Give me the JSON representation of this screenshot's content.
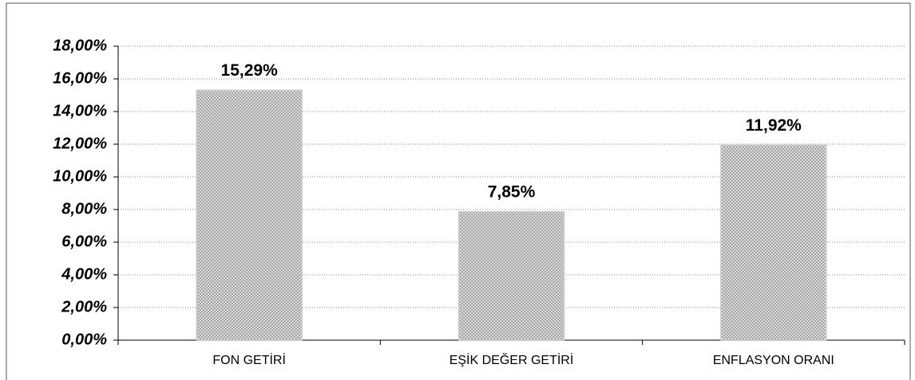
{
  "chart_data": {
    "type": "bar",
    "categories": [
      "FON GETİRİ",
      "EŞİK DEĞER GETİRİ",
      "ENFLASYON ORANI"
    ],
    "values": [
      15.29,
      7.85,
      11.92
    ],
    "value_labels": [
      "15,29%",
      "7,85%",
      "11,92%"
    ],
    "color": "#a6a6a6",
    "ylim": [
      0,
      18
    ],
    "yticks": [
      {
        "value": 0,
        "label": "0,00%"
      },
      {
        "value": 2,
        "label": "2,00%"
      },
      {
        "value": 4,
        "label": "4,00%"
      },
      {
        "value": 6,
        "label": "6,00%"
      },
      {
        "value": 8,
        "label": "8,00%"
      },
      {
        "value": 10,
        "label": "10,00%"
      },
      {
        "value": 12,
        "label": "12,00%"
      },
      {
        "value": 14,
        "label": "14,00%"
      },
      {
        "value": 16,
        "label": "16,00%"
      },
      {
        "value": 18,
        "label": "18,00%"
      }
    ],
    "grid": true
  }
}
